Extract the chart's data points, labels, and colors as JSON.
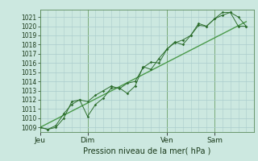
{
  "title": "",
  "xlabel": "Pression niveau de la mer( hPa )",
  "ylabel": "",
  "bg_color": "#cce8e0",
  "grid_color": "#aacccc",
  "line_color": "#2d6e2d",
  "trend_color": "#4a9a4a",
  "ylim": [
    1008.5,
    1021.8
  ],
  "yticks": [
    1009,
    1010,
    1011,
    1012,
    1013,
    1014,
    1015,
    1016,
    1017,
    1018,
    1019,
    1020,
    1021
  ],
  "day_labels": [
    "Jeu",
    "Dim",
    "Ven",
    "Sam"
  ],
  "day_positions": [
    0,
    3,
    8,
    11
  ],
  "xlim": [
    0,
    13.5
  ],
  "series1_x": [
    0,
    0.5,
    1.0,
    1.5,
    2.0,
    2.5,
    3.0,
    3.5,
    4.0,
    4.5,
    5.0,
    5.5,
    6.0,
    6.5,
    7.0,
    7.5,
    8.0,
    8.5,
    9.0,
    9.5,
    10.0,
    10.5,
    11.0,
    11.5,
    12.0,
    12.5,
    13.0
  ],
  "series1_y": [
    1009.0,
    1008.8,
    1009.0,
    1010.0,
    1011.8,
    1012.0,
    1010.2,
    1011.5,
    1012.2,
    1013.3,
    1013.3,
    1012.7,
    1013.5,
    1015.6,
    1015.3,
    1016.5,
    1017.5,
    1018.3,
    1018.0,
    1019.0,
    1020.1,
    1020.0,
    1020.8,
    1021.2,
    1021.5,
    1020.0,
    1020.0
  ],
  "series2_x": [
    0,
    0.5,
    1.0,
    1.5,
    2.0,
    2.5,
    3.0,
    3.5,
    4.0,
    4.5,
    5.0,
    5.5,
    6.0,
    6.5,
    7.0,
    7.5,
    8.0,
    8.5,
    9.0,
    9.5,
    10.0,
    10.5,
    11.0,
    11.5,
    12.0,
    12.5,
    13.0
  ],
  "series2_y": [
    1009.0,
    1008.8,
    1009.2,
    1010.5,
    1011.5,
    1012.0,
    1011.8,
    1012.5,
    1013.0,
    1013.5,
    1013.2,
    1013.8,
    1014.0,
    1015.5,
    1016.1,
    1016.0,
    1017.5,
    1018.2,
    1018.5,
    1019.0,
    1020.3,
    1020.0,
    1020.8,
    1021.5,
    1021.5,
    1021.0,
    1020.0
  ],
  "trend_x": [
    0,
    13.0
  ],
  "trend_y": [
    1009.0,
    1020.5
  ]
}
